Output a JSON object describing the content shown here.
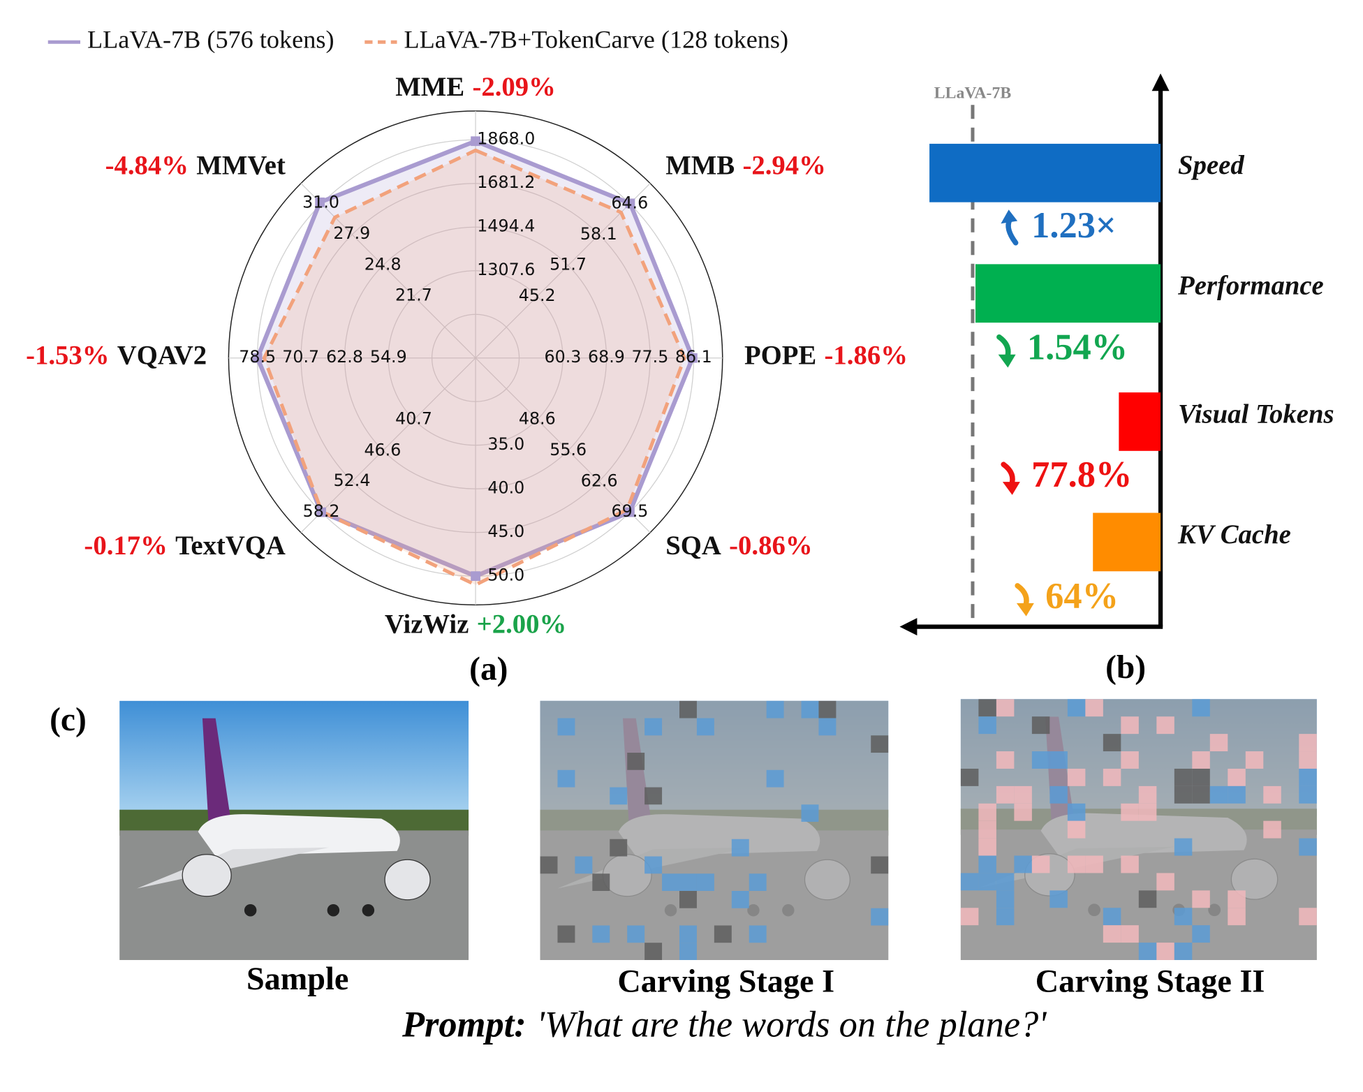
{
  "chart_data": [
    {
      "type": "radar",
      "panel_label": "(a)",
      "series": [
        {
          "name": "LLaVA-7B (576 tokens)",
          "color": "#a99bd0",
          "line_style": "solid",
          "marker": "square",
          "values": [
            1862,
            64.7,
            85.9,
            69.5,
            50.0,
            58.2,
            78.5,
            31.1
          ]
        },
        {
          "name": "LLaVA-7B+TokenCarve (128 tokens)",
          "color": "#f2a27c",
          "line_style": "dashed",
          "values": [
            1823,
            62.8,
            84.3,
            68.9,
            51.0,
            58.1,
            77.3,
            29.6
          ]
        }
      ],
      "axes": [
        {
          "name": "MME",
          "change": "-2.09%",
          "change_color": "#e8141a",
          "lim": [
            934,
            1991
          ],
          "ticks": [
            1307.6,
            1494.4,
            1681.2,
            {
              "value": 1868,
              "label": "1868.0"
            }
          ]
        },
        {
          "name": "MMB",
          "change": "-2.94%",
          "change_color": "#e8141a",
          "lim": [
            32.3,
            68.9
          ],
          "ticks": [
            45.2,
            51.7,
            58.1,
            64.6
          ]
        },
        {
          "name": "POPE",
          "change": "-1.86%",
          "change_color": "#e8141a",
          "lim": [
            43.1,
            91.8
          ],
          "ticks": [
            60.3,
            68.9,
            77.5,
            86.1
          ]
        },
        {
          "name": "SQA",
          "change": "-0.86%",
          "change_color": "#e8141a",
          "lim": [
            34.7,
            74.1
          ],
          "ticks": [
            48.6,
            55.6,
            62.6,
            69.5
          ]
        },
        {
          "name": "VizWiz",
          "change": "+2.00%",
          "change_color": "#1aa34a",
          "lim": [
            25,
            53.3
          ],
          "ticks": [
            {
              "value": 35,
              "label": "35.0"
            },
            {
              "value": 40,
              "label": "40.0"
            },
            {
              "value": 45,
              "label": "45.0"
            },
            {
              "value": 50,
              "label": "50.0"
            }
          ]
        },
        {
          "name": "TextVQA",
          "change": "-0.17%",
          "change_color": "#e8141a",
          "lim": [
            29.0,
            62.05
          ],
          "ticks": [
            40.7,
            46.6,
            52.4,
            58.2
          ]
        },
        {
          "name": "VQAV2",
          "change": "-1.53%",
          "change_color": "#e8141a",
          "lim": [
            39.2,
            83.7
          ],
          "ticks": [
            54.9,
            62.8,
            70.7,
            78.5
          ]
        },
        {
          "name": "MMVet",
          "change": "-4.84%",
          "change_color": "#e8141a",
          "lim": [
            15.5,
            33.0
          ],
          "ticks": [
            21.7,
            24.8,
            27.9,
            {
              "value": 31,
              "label": "31.0"
            }
          ]
        }
      ]
    },
    {
      "type": "bar",
      "orientation": "horizontal",
      "panel_label": "(b)",
      "categories": [
        "Speed",
        "Performance",
        "Visual Tokens",
        "KV Cache"
      ],
      "values": [
        1.23,
        0.985,
        0.222,
        0.36
      ],
      "colors": [
        "#0f6cc4",
        "#00b050",
        "#ff0000",
        "#ff8c00"
      ],
      "annotations": [
        "1.23×",
        "1.54%",
        "77.8%",
        "64%"
      ],
      "annotation_colors": [
        "#1f6fc0",
        "#12a650",
        "#ee1111",
        "#f4a21a"
      ],
      "annotation_directions": [
        "up",
        "down",
        "down",
        "down"
      ],
      "baseline": {
        "label": "LLaVA-7B",
        "value": 1
      },
      "xlim": [
        0,
        1.37
      ]
    }
  ],
  "panel_c": {
    "label": "(c)",
    "images": [
      {
        "caption": "Sample"
      },
      {
        "caption": "Carving Stage I"
      },
      {
        "caption": "Carving Stage II"
      }
    ],
    "prompt": {
      "lead": "Prompt:",
      "text": "'What are the words on the plane?'"
    }
  }
}
